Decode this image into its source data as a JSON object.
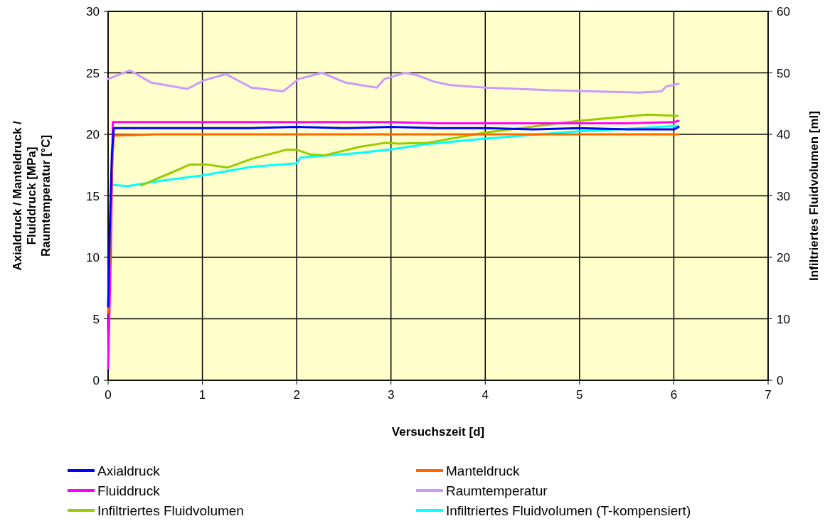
{
  "chart_data": {
    "type": "line",
    "xlabel": "Versuchszeit [d]",
    "ylabel": "Axialdruck / Manteldruck /\nFluiddruck [MPa]\nRaumtemperatur [°C]",
    "y2label": "Infiltriertes Fluidvolumen [ml]",
    "xlim": [
      0,
      7
    ],
    "xticks": [
      0,
      1,
      2,
      3,
      4,
      5,
      6,
      7
    ],
    "ylim": [
      0,
      30
    ],
    "yticks": [
      0,
      5,
      10,
      15,
      20,
      25,
      30
    ],
    "y2lim": [
      0,
      60
    ],
    "y2ticks": [
      0,
      10,
      20,
      30,
      40,
      50,
      60
    ],
    "grid": true,
    "legend": "bottom",
    "marker": "none",
    "line_style": "solid",
    "series": [
      {
        "name": "Axialdruck",
        "color": "#0000ff",
        "x": [
          0,
          0.02,
          0.04,
          0.06,
          0.5,
          1,
          1.5,
          2,
          2.5,
          3,
          3.5,
          4,
          4.5,
          5,
          5.5,
          6,
          6.05
        ],
        "values": [
          6,
          13,
          18.4,
          20.5,
          20.5,
          20.5,
          20.5,
          20.6,
          20.5,
          20.6,
          20.5,
          20.5,
          20.4,
          20.5,
          20.4,
          20.4,
          20.6
        ]
      },
      {
        "name": "Manteldruck",
        "color": "#ff6600",
        "x": [
          0,
          0.02,
          0.04,
          0.06,
          0.5,
          1,
          1.5,
          2,
          2.5,
          3,
          3.5,
          4,
          4.5,
          5,
          5.5,
          6,
          6.05
        ],
        "values": [
          5.5,
          10.5,
          17,
          19.9,
          20,
          20,
          20,
          20,
          20,
          20,
          20,
          20,
          20,
          20,
          20,
          20,
          20
        ]
      },
      {
        "name": "Fluiddruck",
        "color": "#ff00ff",
        "x": [
          0,
          0.03,
          0.05,
          0.5,
          1,
          1.5,
          2,
          2.5,
          3,
          3.5,
          4,
          4.5,
          5,
          5.5,
          6,
          6.05
        ],
        "values": [
          1,
          10.8,
          21,
          21,
          21,
          21,
          21,
          21,
          21,
          20.9,
          20.9,
          20.9,
          20.9,
          20.9,
          21,
          21.1
        ]
      },
      {
        "name": "Raumtemperatur",
        "color": "#cc99ff",
        "x": [
          0,
          0.23,
          0.46,
          0.84,
          1.02,
          1.25,
          1.52,
          1.86,
          2.02,
          2.27,
          2.52,
          2.85,
          2.93,
          3.15,
          3.28,
          3.45,
          3.63,
          4,
          4.64,
          5.64,
          5.87,
          5.92,
          6.05
        ],
        "values": [
          24.5,
          25.2,
          24.2,
          23.7,
          24.4,
          24.9,
          23.8,
          23.5,
          24.5,
          25,
          24.2,
          23.8,
          24.5,
          25,
          24.8,
          24.3,
          24,
          23.8,
          23.6,
          23.4,
          23.5,
          23.9,
          24.1
        ]
      },
      {
        "name": "Infiltriertes Fluidvolumen",
        "color": "#99cc00",
        "axis": "y2",
        "x": [
          0.35,
          0.66,
          0.87,
          1.04,
          1.27,
          1.52,
          1.89,
          2,
          2.15,
          2.3,
          2.68,
          2.93,
          3.08,
          3.38,
          4,
          4.99,
          5.72,
          6.04
        ],
        "values": [
          31.7,
          33.7,
          35.1,
          35.1,
          34.6,
          36,
          37.5,
          37.5,
          36.7,
          36.6,
          38,
          38.6,
          38.5,
          38.6,
          40.3,
          42.2,
          43.2,
          43
        ]
      },
      {
        "name": "Infiltriertes Fluidvolumen (T-kompensiert)",
        "color": "#00ffff",
        "axis": "y2",
        "x": [
          0.03,
          0.21,
          0.54,
          0.99,
          1.52,
          2,
          2.04,
          2.68,
          3.02,
          3.38,
          4,
          4.99,
          5.64,
          6.04
        ],
        "values": [
          31.8,
          31.6,
          32.4,
          33.3,
          34.7,
          35.3,
          36.2,
          37,
          37.6,
          38.4,
          39.3,
          40.5,
          41,
          41.4
        ]
      }
    ]
  }
}
